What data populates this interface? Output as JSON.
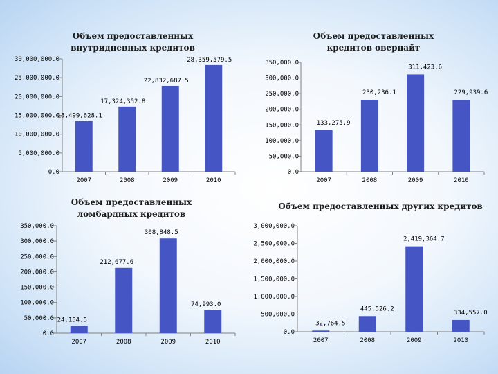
{
  "colors": {
    "bar": "#4556c4",
    "axis": "#808080"
  },
  "chart_data": [
    {
      "type": "bar",
      "title": "Объем предоставленных внутридневных кредитов",
      "categories": [
        "2007",
        "2008",
        "2009",
        "2010"
      ],
      "values": [
        13499628.1,
        17324352.8,
        22832687.5,
        28359579.5
      ],
      "value_labels": [
        "13,499,628.1",
        "17,324,352.8",
        "22,832,687.5",
        "28,359,579.5"
      ],
      "yticks": [
        "0.0",
        "5,000,000.0",
        "10,000,000.0",
        "15,000,000.0",
        "20,000,000.0",
        "25,000,000.0",
        "30,000,000.0"
      ],
      "ylim": [
        0,
        30000000
      ],
      "xlabel": "",
      "ylabel": ""
    },
    {
      "type": "bar",
      "title": "Объем предоставленных кредитов овернайт",
      "categories": [
        "2007",
        "2008",
        "2009",
        "2010"
      ],
      "values": [
        133275.9,
        230236.1,
        311423.6,
        229939.6
      ],
      "value_labels": [
        "133,275.9",
        "230,236.1",
        "311,423.6",
        "229,939.6"
      ],
      "yticks": [
        "0.0",
        "50,000.0",
        "100,000.0",
        "150,000.0",
        "200,000.0",
        "250,000.0",
        "300,000.0",
        "350,000.0"
      ],
      "ylim": [
        0,
        350000
      ],
      "xlabel": "",
      "ylabel": ""
    },
    {
      "type": "bar",
      "title": "Объем предоставленных ломбардных кредитов",
      "categories": [
        "2007",
        "2008",
        "2009",
        "2010"
      ],
      "values": [
        24154.5,
        212677.6,
        308848.5,
        74993.0
      ],
      "value_labels": [
        "24,154.5",
        "212,677.6",
        "308,848.5",
        "74,993.0"
      ],
      "yticks": [
        "0.0",
        "50,000.0",
        "100,000.0",
        "150,000.0",
        "200,000.0",
        "250,000.0",
        "300,000.0",
        "350,000.0"
      ],
      "ylim": [
        0,
        350000
      ],
      "xlabel": "",
      "ylabel": ""
    },
    {
      "type": "bar",
      "title": "Объем предоставленных других кредитов",
      "categories": [
        "2007",
        "2008",
        "2009",
        "2010"
      ],
      "values": [
        32764.5,
        445526.2,
        2419364.7,
        334557.0
      ],
      "value_labels": [
        "32,764.5",
        "445,526.2",
        "2,419,364.7",
        "334,557.0"
      ],
      "yticks": [
        "0.0",
        "500,000.0",
        "1,000,000.0",
        "1,500,000.0",
        "2,000,000.0",
        "2,500,000.0",
        "3,000,000.0"
      ],
      "ylim": [
        0,
        3000000
      ],
      "xlabel": "",
      "ylabel": ""
    }
  ]
}
